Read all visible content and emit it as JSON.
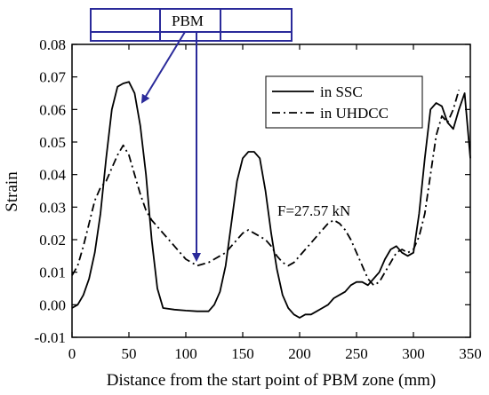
{
  "chart_data": {
    "type": "line",
    "xlabel": "Distance from the start point of PBM zone (mm)",
    "ylabel": "Strain",
    "xlim": [
      0,
      350
    ],
    "ylim": [
      -0.01,
      0.08
    ],
    "x_ticks": [
      0,
      50,
      100,
      150,
      200,
      250,
      300,
      350
    ],
    "y_ticks": [
      -0.01,
      0.0,
      0.01,
      0.02,
      0.03,
      0.04,
      0.05,
      0.06,
      0.07,
      0.08
    ],
    "x_tick_labels": [
      "0",
      "50",
      "100",
      "150",
      "200",
      "250",
      "300",
      "350"
    ],
    "y_tick_labels": [
      "-0.01",
      "0.00",
      "0.01",
      "0.02",
      "0.03",
      "0.04",
      "0.05",
      "0.06",
      "0.07",
      "0.08"
    ],
    "grid": false,
    "legend_position": "top-right",
    "annotation": "F=27.57 kN",
    "callout_label": "PBM",
    "colors": {
      "line": "#000000",
      "callout": "#2a2a9a"
    },
    "series": [
      {
        "name": "in SSC",
        "style": "solid",
        "x": [
          0,
          5,
          10,
          15,
          20,
          25,
          30,
          35,
          40,
          45,
          50,
          55,
          60,
          65,
          70,
          75,
          80,
          90,
          100,
          110,
          120,
          125,
          130,
          135,
          140,
          145,
          150,
          155,
          160,
          165,
          170,
          175,
          180,
          185,
          190,
          195,
          200,
          205,
          210,
          215,
          220,
          225,
          230,
          235,
          240,
          245,
          250,
          255,
          260,
          265,
          270,
          275,
          280,
          285,
          290,
          295,
          300,
          305,
          310,
          315,
          320,
          325,
          330,
          335,
          340,
          345,
          350
        ],
        "y": [
          -0.001,
          0.0,
          0.003,
          0.008,
          0.016,
          0.028,
          0.045,
          0.06,
          0.067,
          0.068,
          0.0685,
          0.065,
          0.055,
          0.04,
          0.02,
          0.005,
          -0.001,
          -0.0015,
          -0.0018,
          -0.002,
          -0.002,
          0.0,
          0.004,
          0.012,
          0.025,
          0.038,
          0.045,
          0.047,
          0.047,
          0.045,
          0.035,
          0.022,
          0.011,
          0.003,
          -0.001,
          -0.003,
          -0.004,
          -0.003,
          -0.003,
          -0.002,
          -0.001,
          0.0,
          0.002,
          0.003,
          0.004,
          0.006,
          0.007,
          0.007,
          0.006,
          0.008,
          0.01,
          0.014,
          0.017,
          0.018,
          0.016,
          0.015,
          0.016,
          0.028,
          0.045,
          0.06,
          0.062,
          0.061,
          0.056,
          0.054,
          0.06,
          0.065,
          0.045
        ]
      },
      {
        "name": "in UHDCC",
        "style": "dashdot",
        "x": [
          0,
          5,
          10,
          15,
          20,
          25,
          30,
          35,
          40,
          45,
          50,
          55,
          60,
          65,
          70,
          75,
          80,
          85,
          90,
          95,
          100,
          105,
          110,
          115,
          120,
          125,
          130,
          135,
          140,
          145,
          150,
          155,
          160,
          165,
          170,
          175,
          180,
          185,
          190,
          195,
          200,
          205,
          210,
          215,
          220,
          225,
          230,
          235,
          240,
          245,
          250,
          255,
          260,
          265,
          270,
          275,
          280,
          285,
          290,
          295,
          300,
          305,
          310,
          315,
          320,
          325,
          330,
          335,
          340
        ],
        "y": [
          0.009,
          0.012,
          0.018,
          0.025,
          0.032,
          0.036,
          0.038,
          0.042,
          0.046,
          0.049,
          0.046,
          0.04,
          0.034,
          0.029,
          0.026,
          0.024,
          0.022,
          0.02,
          0.018,
          0.016,
          0.014,
          0.013,
          0.012,
          0.0125,
          0.013,
          0.014,
          0.015,
          0.016,
          0.018,
          0.02,
          0.022,
          0.023,
          0.022,
          0.021,
          0.02,
          0.018,
          0.015,
          0.013,
          0.012,
          0.013,
          0.015,
          0.017,
          0.019,
          0.021,
          0.023,
          0.025,
          0.026,
          0.025,
          0.023,
          0.02,
          0.016,
          0.012,
          0.008,
          0.006,
          0.007,
          0.01,
          0.013,
          0.016,
          0.017,
          0.016,
          0.017,
          0.021,
          0.028,
          0.04,
          0.052,
          0.058,
          0.056,
          0.06,
          0.066
        ]
      }
    ]
  }
}
